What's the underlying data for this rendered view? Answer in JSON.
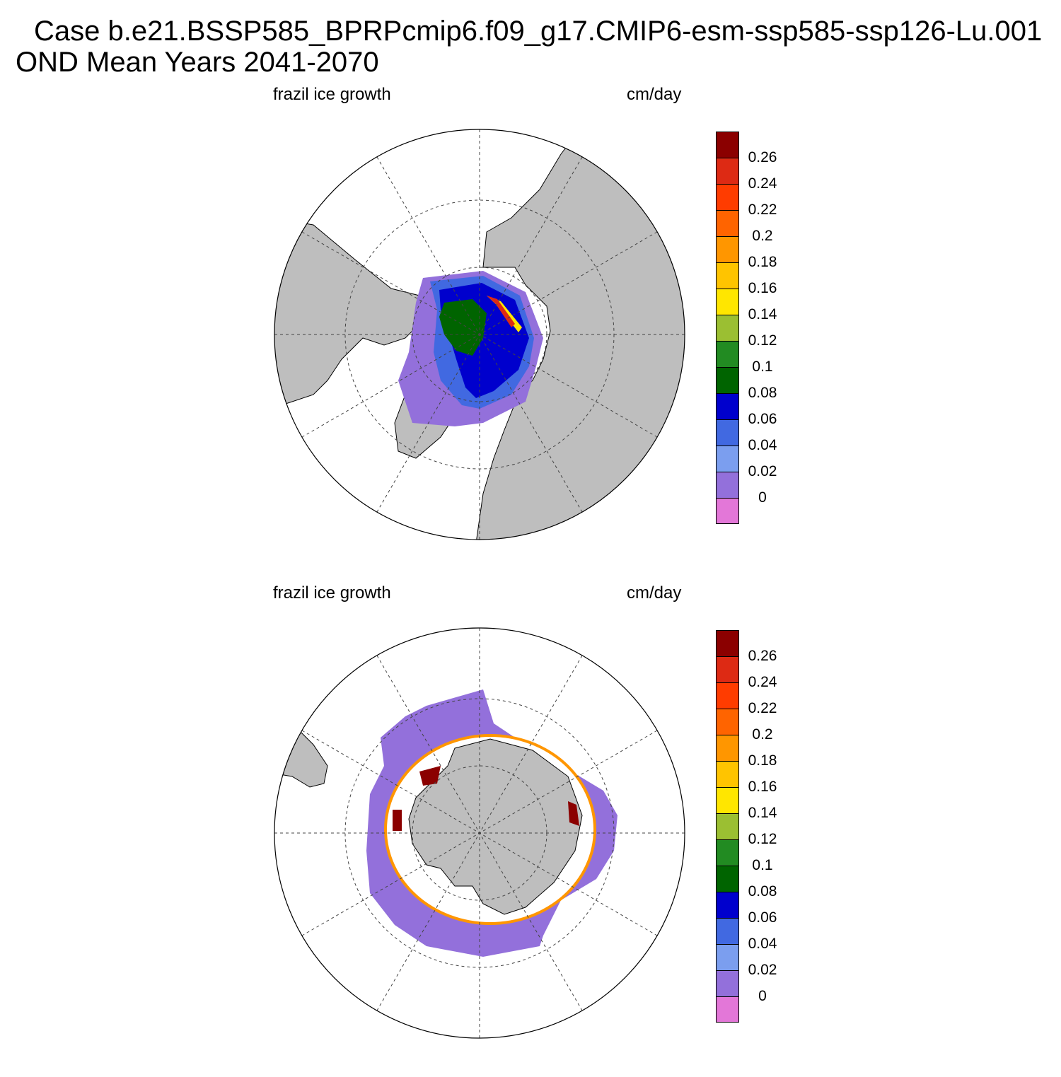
{
  "header": {
    "case_title": "Case b.e21.BSSP585_BPRPcmip6.f09_g17.CMIP6-esm-ssp585-ssp126-Lu.001",
    "season_title": "OND Mean   Years 2041-2070"
  },
  "panels": [
    {
      "hemisphere": "north",
      "variable": "frazil ice growth",
      "units": "cm/day"
    },
    {
      "hemisphere": "south",
      "variable": "frazil ice growth",
      "units": "cm/day"
    }
  ],
  "colorbar": {
    "labels": [
      "0.26",
      "0.24",
      "0.22",
      "0.2",
      "0.18",
      "0.16",
      "0.14",
      "0.12",
      "0.1",
      "0.08",
      "0.06",
      "0.04",
      "0.02",
      "0"
    ],
    "colors": [
      "#8b0000",
      "#dd2a14",
      "#ff3c00",
      "#ff6400",
      "#ff9600",
      "#ffc400",
      "#ffe600",
      "#9bbf32",
      "#228b22",
      "#006400",
      "#0000cd",
      "#4169e1",
      "#7b9eef",
      "#9370db",
      "#e377d8"
    ]
  },
  "colors": {
    "land": "#bebebe",
    "ocean": "#ffffff",
    "grid": "#444444"
  }
}
